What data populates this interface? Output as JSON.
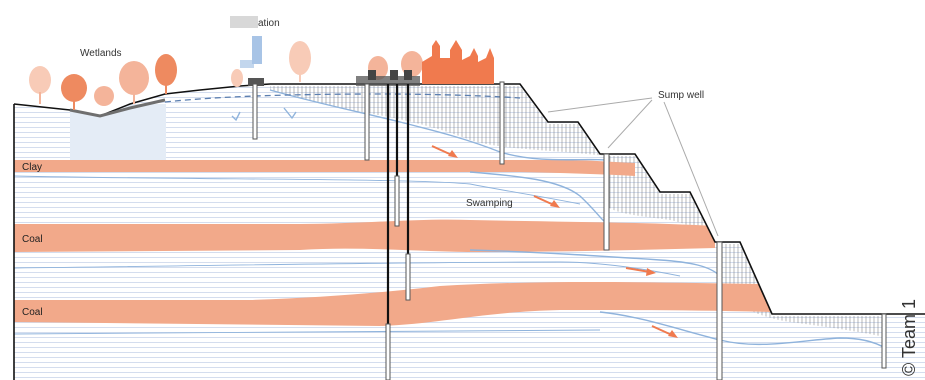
{
  "labels": {
    "wetlands": "Wetlands",
    "infiltration": "ation",
    "sump_well": "Sump well",
    "swamping": "Swamping",
    "clay": "Clay",
    "coal_upper": "Coal",
    "coal_lower": "Coal"
  },
  "copyright": "© Team 1",
  "colors": {
    "clay_coal": "#f2a98a",
    "orange_accent": "#f07a4e",
    "water_line": "#8fb3dc",
    "strata_line": "#c5d3ea",
    "terrain_line": "#111111",
    "tree_color": "#f4b49a",
    "tree_dark": "#ee8a60"
  },
  "icons": [
    "tree-icon",
    "building-icon",
    "flow-arrow-icon",
    "well-icon",
    "infiltration-icon"
  ]
}
